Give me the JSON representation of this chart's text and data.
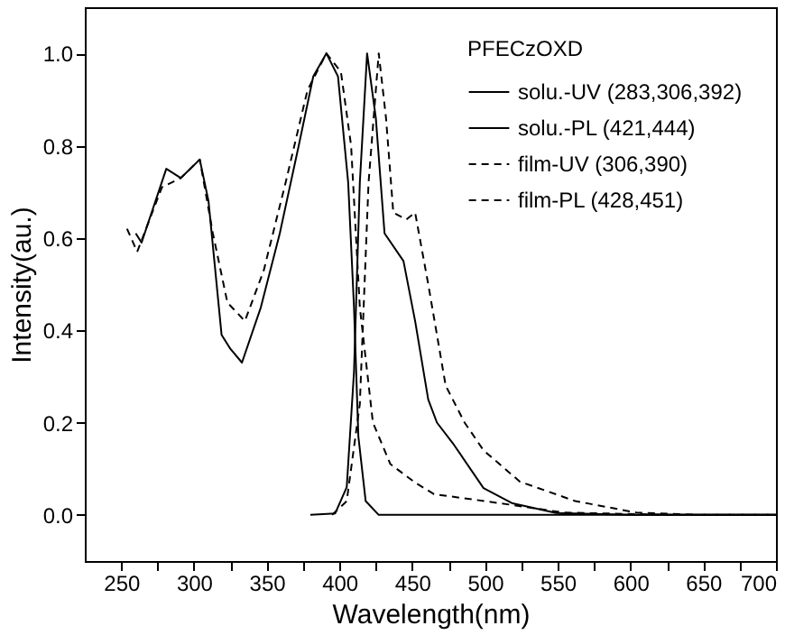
{
  "chart_data": {
    "type": "line",
    "xlabel": "Wavelength(nm)",
    "ylabel": "Intensity(au.)",
    "legend_title": "PFECzOXD",
    "legend": "top right",
    "xlim": [
      225,
      700
    ],
    "ylim": [
      -0.1,
      1.1
    ],
    "xticks": [
      250,
      {
        "value": 275,
        "label": null
      },
      300,
      {
        "value": 325,
        "label": null
      },
      350,
      {
        "value": 375,
        "label": null
      },
      400,
      {
        "value": 425,
        "label": null
      },
      450,
      {
        "value": 475,
        "label": null
      },
      500,
      {
        "value": 525,
        "label": null
      },
      550,
      {
        "value": 575,
        "label": null
      },
      600,
      {
        "value": 625,
        "label": null
      },
      650,
      {
        "value": 675,
        "label": null
      },
      700
    ],
    "yticks": [
      {
        "value": 0,
        "label": "0.0"
      },
      0.2,
      0.4,
      0.6,
      0.8,
      {
        "value": 1,
        "label": "1.0"
      }
    ],
    "grid": false,
    "series": [
      {
        "name": "solu.-UV (283,306,392)",
        "color": "#000000",
        "line_style": "solid",
        "x": [
          260,
          264,
          281,
          291,
          304,
          310,
          319,
          325,
          333,
          346,
          359,
          372,
          382,
          391,
          399,
          406,
          410,
          413,
          418,
          427,
          450,
          500,
          600,
          700
        ],
        "values": [
          0.61,
          0.59,
          0.75,
          0.73,
          0.77,
          0.68,
          0.39,
          0.36,
          0.33,
          0.45,
          0.61,
          0.8,
          0.95,
          1.0,
          0.95,
          0.72,
          0.45,
          0.17,
          0.03,
          0.0,
          0.0,
          0.0,
          0.0,
          0.0
        ]
      },
      {
        "name": "solu.-PL (421,444)",
        "color": "#000000",
        "line_style": "solid",
        "x": [
          380,
          397,
          405,
          410,
          414,
          419,
          425,
          431,
          444,
          452,
          461,
          467,
          478,
          499,
          519,
          549,
          600,
          700
        ],
        "values": [
          0.0,
          0.003,
          0.06,
          0.31,
          0.72,
          1.0,
          0.86,
          0.61,
          0.55,
          0.42,
          0.25,
          0.2,
          0.155,
          0.058,
          0.025,
          0.004,
          0.0,
          0.0
        ]
      },
      {
        "name": "film-UV (306,390)",
        "color": "#000000",
        "line_style": "dashed",
        "x": [
          254,
          261,
          278,
          291,
          304,
          313,
          323,
          335,
          348,
          363,
          378,
          391,
          401,
          408,
          414,
          423,
          435,
          452,
          465,
          511,
          554,
          630,
          700
        ],
        "values": [
          0.62,
          0.57,
          0.71,
          0.73,
          0.77,
          0.61,
          0.46,
          0.42,
          0.53,
          0.72,
          0.92,
          1.0,
          0.96,
          0.8,
          0.45,
          0.2,
          0.11,
          0.07,
          0.045,
          0.025,
          0.005,
          0.0,
          0.0
        ]
      },
      {
        "name": "film-PL (428,451)",
        "color": "#000000",
        "line_style": "dashed",
        "x": [
          395,
          405,
          414,
          420,
          427,
          432,
          437,
          446,
          452,
          461,
          473,
          486,
          499,
          524,
          562,
          604,
          650,
          700
        ],
        "values": [
          0.0,
          0.03,
          0.24,
          0.72,
          1.0,
          0.86,
          0.655,
          0.64,
          0.655,
          0.5,
          0.28,
          0.2,
          0.14,
          0.072,
          0.03,
          0.005,
          0.0,
          0.0
        ]
      }
    ]
  }
}
